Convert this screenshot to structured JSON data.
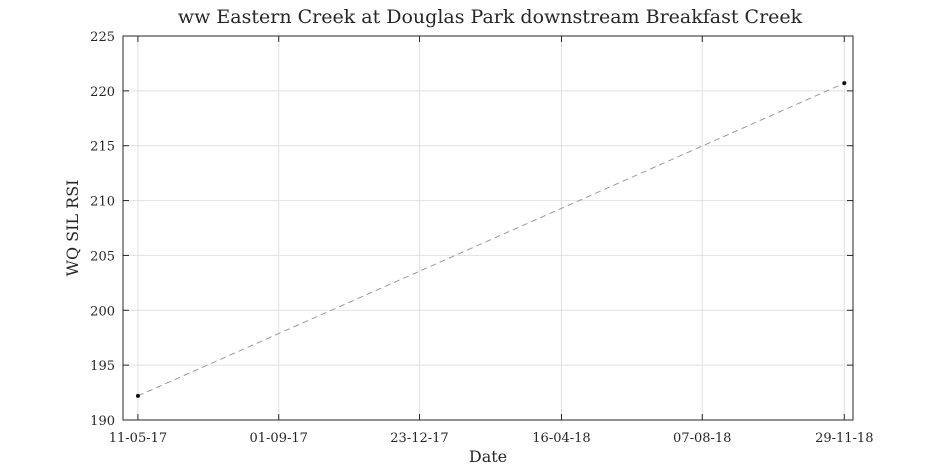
{
  "chart_data": {
    "type": "line",
    "title": "ww Eastern Creek at Douglas Park downstream Breakfast Creek",
    "xlabel": "Date",
    "ylabel": "WQ SIL RSI",
    "xlim": [
      "2017-04-29",
      "2018-12-06"
    ],
    "ylim": [
      190,
      225
    ],
    "x_ticks": [
      {
        "date": "2017-05-11",
        "label": "11-05-17"
      },
      {
        "date": "2017-09-01",
        "label": "01-09-17"
      },
      {
        "date": "2017-12-23",
        "label": "23-12-17"
      },
      {
        "date": "2018-04-16",
        "label": "16-04-18"
      },
      {
        "date": "2018-08-07",
        "label": "07-08-18"
      },
      {
        "date": "2018-11-29",
        "label": "29-11-18"
      }
    ],
    "y_ticks": [
      190,
      195,
      200,
      205,
      210,
      215,
      220,
      225
    ],
    "grid": true,
    "series": [
      {
        "points": [
          {
            "x": "2017-05-11",
            "y": 192.2
          },
          {
            "x": "2018-11-29",
            "y": 220.7
          }
        ]
      }
    ],
    "colors": {
      "line": "#9a9a9a",
      "marker": "#111111",
      "grid": "#e1e1e1",
      "axis": "#262626"
    }
  }
}
